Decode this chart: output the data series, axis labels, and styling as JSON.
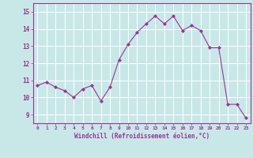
{
  "x": [
    0,
    1,
    2,
    3,
    4,
    5,
    6,
    7,
    8,
    9,
    10,
    11,
    12,
    13,
    14,
    15,
    16,
    17,
    18,
    19,
    20,
    21,
    22,
    23
  ],
  "y": [
    10.7,
    10.9,
    10.6,
    10.4,
    10.0,
    10.5,
    10.7,
    9.8,
    10.6,
    12.2,
    13.1,
    13.8,
    14.3,
    14.75,
    14.3,
    14.75,
    13.9,
    14.2,
    13.9,
    12.9,
    12.9,
    9.6,
    9.6,
    8.8
  ],
  "line_color": "#993399",
  "marker": "D",
  "marker_size": 2,
  "bg_color": "#c8e8e8",
  "grid_color": "#ffffff",
  "xlabel": "Windchill (Refroidissement éolien,°C)",
  "xlabel_color": "#993399",
  "ylim": [
    8.5,
    15.5
  ],
  "xlim": [
    -0.5,
    23.5
  ],
  "tick_color": "#993399",
  "axis_color": "#993399",
  "yticks": [
    9,
    10,
    11,
    12,
    13,
    14,
    15
  ],
  "xtick_labels": [
    "0",
    "1",
    "2",
    "3",
    "4",
    "5",
    "6",
    "7",
    "8",
    "9",
    "10",
    "11",
    "12",
    "13",
    "14",
    "15",
    "16",
    "17",
    "18",
    "19",
    "20",
    "21",
    "22",
    "23"
  ]
}
